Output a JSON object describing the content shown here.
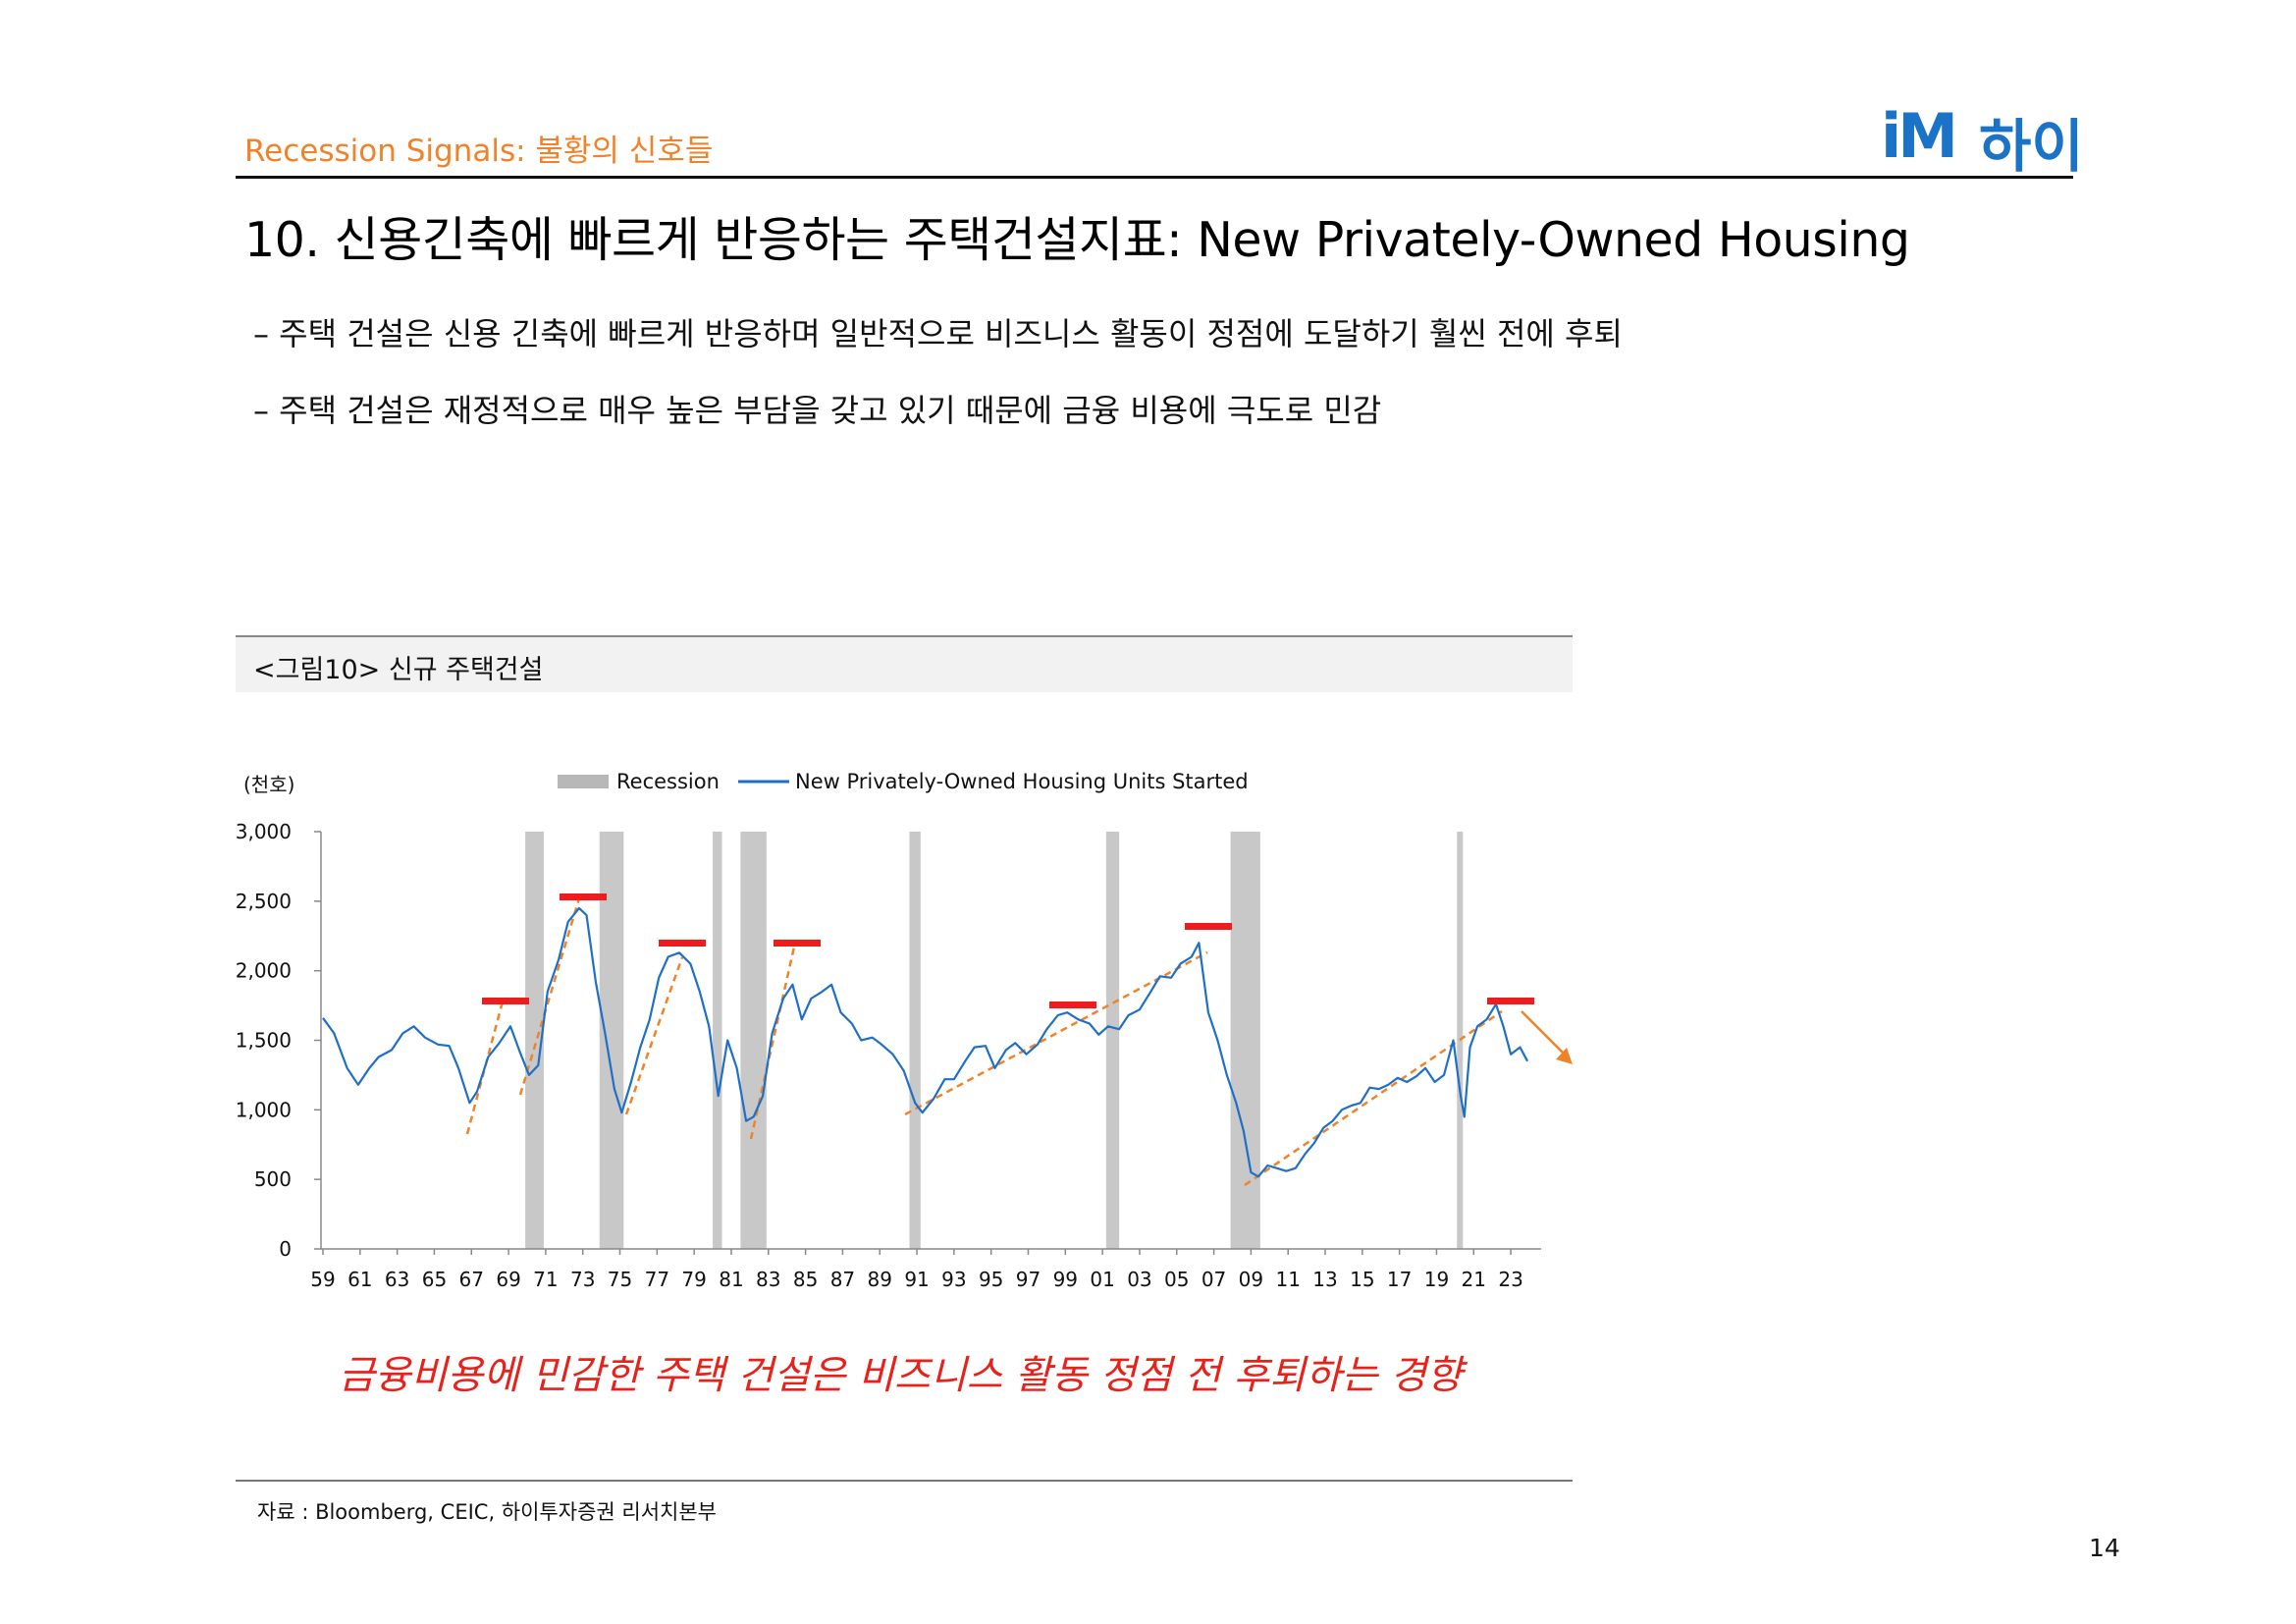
{
  "header": {
    "section_label": "Recession Signals: 불황의 신호들",
    "logo_im": "iM",
    "logo_text": "하이"
  },
  "page_title": "10. 신용긴축에 빠르게 반응하는 주택건설지표: New Privately-Owned Housing",
  "bullets": [
    "–  주택 건설은 신용 긴축에 빠르게 반응하며 일반적으로 비즈니스 활동이 정점에 도달하기 훨씬 전에 후퇴",
    "–  주택 건설은 재정적으로 매우 높은 부담을 갖고 있기 때문에 금융 비용에 극도로 민감"
  ],
  "figure_caption": "<그림10> 신규 주택건설",
  "chart_data": {
    "type": "line",
    "unit_label": "(천호)",
    "legend": [
      "Recession",
      "New Privately-Owned Housing Units Started"
    ],
    "legend_placement": "top",
    "ylim": [
      0,
      3000
    ],
    "yticks": [
      "3,000",
      "2,500",
      "2,000",
      "1,500",
      "1,000",
      "500",
      "0"
    ],
    "xticks": [
      "59",
      "61",
      "63",
      "65",
      "67",
      "69",
      "71",
      "73",
      "75",
      "77",
      "79",
      "81",
      "83",
      "85",
      "87",
      "89",
      "91",
      "93",
      "95",
      "97",
      "99",
      "01",
      "03",
      "05",
      "07",
      "09",
      "11",
      "13",
      "15",
      "17",
      "19",
      "21",
      "23"
    ],
    "xlim_year": [
      1959.0,
      2024.0
    ],
    "recessions": [
      [
        1969.9,
        1970.9
      ],
      [
        1973.9,
        1975.2
      ],
      [
        1980.0,
        1980.5
      ],
      [
        1981.5,
        1982.9
      ],
      [
        1990.6,
        1991.2
      ],
      [
        2001.2,
        2001.9
      ],
      [
        2007.9,
        2009.5
      ],
      [
        2020.1,
        2020.4
      ]
    ],
    "series": [
      {
        "name": "New Privately-Owned Housing Units Started",
        "color": "#1f6fc6",
        "points": [
          [
            1959.0,
            1660
          ],
          [
            1959.6,
            1550
          ],
          [
            1960.3,
            1300
          ],
          [
            1960.9,
            1180
          ],
          [
            1961.5,
            1300
          ],
          [
            1962.0,
            1380
          ],
          [
            1962.7,
            1430
          ],
          [
            1963.3,
            1550
          ],
          [
            1963.9,
            1600
          ],
          [
            1964.5,
            1520
          ],
          [
            1965.2,
            1470
          ],
          [
            1965.8,
            1460
          ],
          [
            1966.3,
            1300
          ],
          [
            1966.9,
            1050
          ],
          [
            1967.3,
            1130
          ],
          [
            1967.9,
            1380
          ],
          [
            1968.5,
            1480
          ],
          [
            1969.1,
            1600
          ],
          [
            1969.6,
            1420
          ],
          [
            1970.1,
            1250
          ],
          [
            1970.6,
            1320
          ],
          [
            1971.1,
            1850
          ],
          [
            1971.7,
            2080
          ],
          [
            1972.2,
            2350
          ],
          [
            1972.8,
            2450
          ],
          [
            1973.2,
            2400
          ],
          [
            1973.7,
            1920
          ],
          [
            1974.2,
            1550
          ],
          [
            1974.7,
            1150
          ],
          [
            1975.1,
            980
          ],
          [
            1975.6,
            1200
          ],
          [
            1976.1,
            1450
          ],
          [
            1976.6,
            1650
          ],
          [
            1977.1,
            1950
          ],
          [
            1977.6,
            2100
          ],
          [
            1978.2,
            2130
          ],
          [
            1978.8,
            2050
          ],
          [
            1979.3,
            1850
          ],
          [
            1979.8,
            1600
          ],
          [
            1980.3,
            1100
          ],
          [
            1980.8,
            1500
          ],
          [
            1981.3,
            1300
          ],
          [
            1981.8,
            920
          ],
          [
            1982.2,
            950
          ],
          [
            1982.7,
            1100
          ],
          [
            1983.2,
            1550
          ],
          [
            1983.8,
            1800
          ],
          [
            1984.3,
            1900
          ],
          [
            1984.8,
            1650
          ],
          [
            1985.3,
            1800
          ],
          [
            1985.9,
            1850
          ],
          [
            1986.4,
            1900
          ],
          [
            1986.9,
            1700
          ],
          [
            1987.5,
            1620
          ],
          [
            1988.0,
            1500
          ],
          [
            1988.6,
            1520
          ],
          [
            1989.1,
            1470
          ],
          [
            1989.7,
            1400
          ],
          [
            1990.3,
            1280
          ],
          [
            1990.9,
            1050
          ],
          [
            1991.3,
            980
          ],
          [
            1991.9,
            1080
          ],
          [
            1992.5,
            1220
          ],
          [
            1993.0,
            1220
          ],
          [
            1993.6,
            1350
          ],
          [
            1994.1,
            1450
          ],
          [
            1994.7,
            1460
          ],
          [
            1995.2,
            1300
          ],
          [
            1995.8,
            1430
          ],
          [
            1996.3,
            1480
          ],
          [
            1996.9,
            1400
          ],
          [
            1997.5,
            1470
          ],
          [
            1998.0,
            1580
          ],
          [
            1998.6,
            1680
          ],
          [
            1999.1,
            1700
          ],
          [
            1999.7,
            1650
          ],
          [
            2000.3,
            1620
          ],
          [
            2000.8,
            1540
          ],
          [
            2001.3,
            1600
          ],
          [
            2001.9,
            1580
          ],
          [
            2002.4,
            1680
          ],
          [
            2003.0,
            1720
          ],
          [
            2003.6,
            1850
          ],
          [
            2004.1,
            1960
          ],
          [
            2004.7,
            1950
          ],
          [
            2005.2,
            2050
          ],
          [
            2005.8,
            2100
          ],
          [
            2006.2,
            2200
          ],
          [
            2006.7,
            1700
          ],
          [
            2007.2,
            1500
          ],
          [
            2007.7,
            1250
          ],
          [
            2008.2,
            1050
          ],
          [
            2008.6,
            850
          ],
          [
            2009.0,
            550
          ],
          [
            2009.4,
            520
          ],
          [
            2009.9,
            600
          ],
          [
            2010.4,
            580
          ],
          [
            2010.9,
            560
          ],
          [
            2011.4,
            580
          ],
          [
            2011.9,
            680
          ],
          [
            2012.4,
            760
          ],
          [
            2012.9,
            870
          ],
          [
            2013.4,
            920
          ],
          [
            2013.9,
            1000
          ],
          [
            2014.4,
            1030
          ],
          [
            2014.9,
            1050
          ],
          [
            2015.4,
            1160
          ],
          [
            2015.9,
            1150
          ],
          [
            2016.4,
            1180
          ],
          [
            2016.9,
            1230
          ],
          [
            2017.4,
            1200
          ],
          [
            2017.9,
            1240
          ],
          [
            2018.4,
            1300
          ],
          [
            2018.9,
            1200
          ],
          [
            2019.4,
            1250
          ],
          [
            2019.9,
            1500
          ],
          [
            2020.3,
            1100
          ],
          [
            2020.5,
            950
          ],
          [
            2020.8,
            1450
          ],
          [
            2021.2,
            1600
          ],
          [
            2021.7,
            1650
          ],
          [
            2022.2,
            1760
          ],
          [
            2022.6,
            1600
          ],
          [
            2023.0,
            1400
          ],
          [
            2023.5,
            1450
          ],
          [
            2023.9,
            1350
          ]
        ]
      }
    ]
  },
  "highlight_text": "금융비용에 민감한 주택 건설은 비즈니스 활동 정점 전 후퇴하는 경향",
  "source": "자료 : Bloomberg, CEIC, 하이투자증권 리서치본부",
  "page_number": "14",
  "colors": {
    "accent_orange": "#f0832a",
    "line_blue": "#1f6fc6",
    "peak_marker_red": "#ee1c1c",
    "recession_gray": "#c8c8c8",
    "highlight_red": "#e8221b"
  }
}
